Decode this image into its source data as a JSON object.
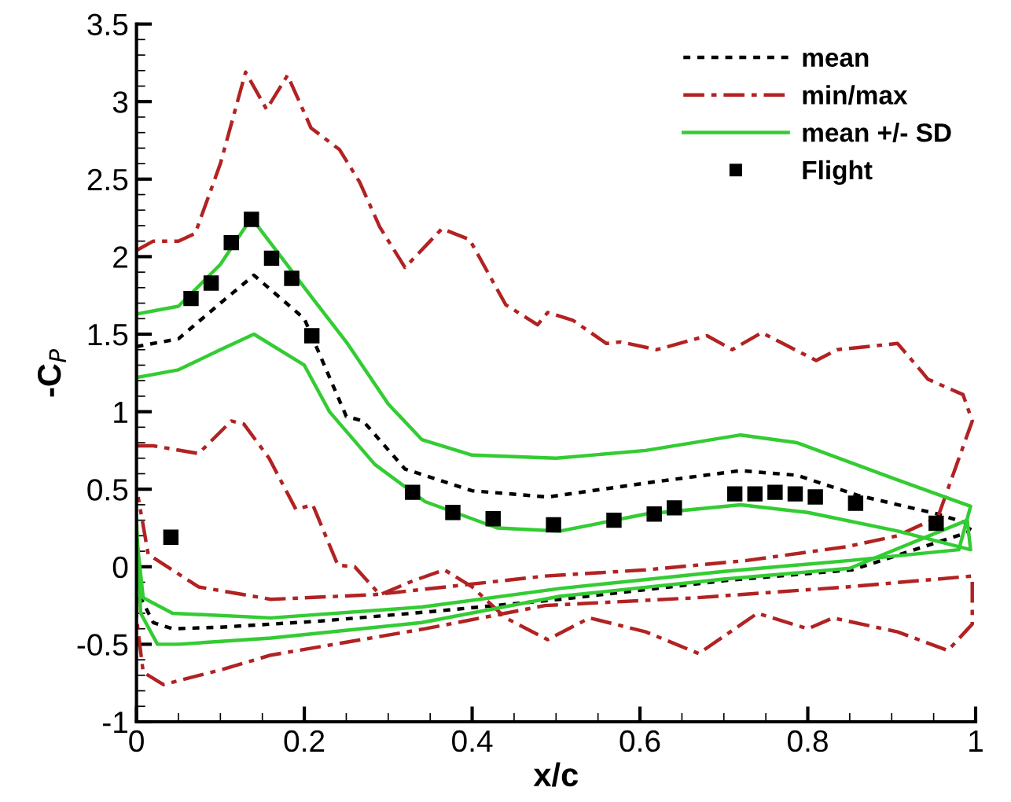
{
  "chart_data": {
    "type": "line",
    "xlabel": "x/c",
    "ylabel": "-C$_{P}$",
    "xlim": [
      0,
      1
    ],
    "ylim": [
      -1,
      3.5
    ],
    "xticks": [
      0,
      0.2,
      0.4,
      0.6,
      0.8,
      1
    ],
    "yticks": [
      -1,
      -0.5,
      0,
      0.5,
      1,
      1.5,
      2,
      2.5,
      3,
      3.5
    ],
    "grid": false,
    "legend": "top right",
    "series": [
      {
        "name": "mean",
        "line_style": "dotted",
        "color": "#000000",
        "x": [
          0,
          0.05,
          0.1,
          0.14,
          0.2,
          0.25,
          0.27,
          0.32,
          0.4,
          0.49,
          0.607,
          0.72,
          0.787,
          0.86,
          0.955,
          0.996,
          0.99,
          0.853,
          0.7,
          0.505,
          0.35,
          0.22,
          0.1,
          0.043,
          0.02,
          0.005,
          0
        ],
        "values": [
          1.42,
          1.47,
          1.7,
          1.88,
          1.6,
          0.97,
          0.94,
          0.63,
          0.49,
          0.45,
          0.54,
          0.62,
          0.59,
          0.46,
          0.34,
          0.27,
          0.22,
          -0.02,
          -0.09,
          -0.21,
          -0.29,
          -0.35,
          -0.39,
          -0.4,
          -0.36,
          -0.2,
          0.1
        ]
      },
      {
        "name": "min/max",
        "line_style": "dashdot",
        "color": "#b22222",
        "x": [
          0,
          0.02,
          0.05,
          0.07,
          0.1,
          0.13,
          0.155,
          0.18,
          0.208,
          0.242,
          0.266,
          0.29,
          0.32,
          0.364,
          0.397,
          0.44,
          0.478,
          0.49,
          0.52,
          0.56,
          0.577,
          0.62,
          0.68,
          0.71,
          0.745,
          0.81,
          0.835,
          0.907,
          0.937,
          0.943,
          0.985,
          0.996,
          0.955,
          0.907,
          0.847,
          0.727,
          0.607,
          0.487,
          0.284,
          0.16,
          0.074,
          0.014,
          0.002
        ],
        "values": [
          2.04,
          2.1,
          2.1,
          2.15,
          2.6,
          3.19,
          2.95,
          3.17,
          2.83,
          2.69,
          2.48,
          2.19,
          1.93,
          2.18,
          2.11,
          1.69,
          1.56,
          1.64,
          1.59,
          1.44,
          1.45,
          1.4,
          1.49,
          1.4,
          1.51,
          1.33,
          1.4,
          1.44,
          1.25,
          1.21,
          1.11,
          0.94,
          0.32,
          0.2,
          0.13,
          0.04,
          -0.02,
          -0.06,
          -0.18,
          -0.21,
          -0.13,
          0.08,
          0.45
        ]
      },
      {
        "line_style": "dashdot",
        "color": "#b22222",
        "x": [
          0,
          0.02,
          0.074,
          0.113,
          0.128,
          0.158,
          0.19,
          0.21,
          0.24,
          0.26,
          0.29,
          0.33,
          0.367,
          0.4,
          0.44,
          0.49,
          0.54,
          0.607,
          0.67,
          0.74,
          0.8,
          0.83,
          0.907,
          0.967,
          0.996,
          0.996,
          0.847,
          0.667,
          0.487,
          0.344,
          0.16,
          0.104,
          0.032,
          0.008,
          0,
          0
        ],
        "values": [
          0.78,
          0.78,
          0.73,
          0.94,
          0.92,
          0.7,
          0.37,
          0.4,
          0.01,
          0,
          -0.18,
          -0.09,
          -0.02,
          -0.13,
          -0.33,
          -0.47,
          -0.33,
          -0.42,
          -0.56,
          -0.3,
          -0.4,
          -0.33,
          -0.42,
          -0.54,
          -0.37,
          -0.06,
          -0.13,
          -0.2,
          -0.25,
          -0.4,
          -0.57,
          -0.66,
          -0.76,
          -0.68,
          -0.33,
          -0.2
        ]
      },
      {
        "name": "mean +/- SD",
        "line_style": "solid",
        "color": "#33cc33",
        "x": [
          0,
          0.05,
          0.1,
          0.137,
          0.21,
          0.25,
          0.3,
          0.34,
          0.4,
          0.5,
          0.607,
          0.72,
          0.787,
          0.907,
          0.994,
          0.98,
          0.85,
          0.7,
          0.505,
          0.34,
          0.16,
          0.043,
          0.008,
          0
        ],
        "values": [
          1.63,
          1.68,
          1.95,
          2.25,
          1.73,
          1.45,
          1.05,
          0.82,
          0.72,
          0.7,
          0.75,
          0.85,
          0.8,
          0.56,
          0.39,
          0.11,
          0.04,
          -0.03,
          -0.14,
          -0.26,
          -0.33,
          -0.3,
          -0.2,
          0.2
        ]
      },
      {
        "line_style": "solid",
        "color": "#33cc33",
        "x": [
          0,
          0.05,
          0.1,
          0.14,
          0.2,
          0.23,
          0.284,
          0.344,
          0.43,
          0.505,
          0.607,
          0.72,
          0.8,
          0.907,
          0.994,
          0.99,
          0.85,
          0.7,
          0.505,
          0.34,
          0.16,
          0.05,
          0.025,
          0.005,
          0
        ],
        "values": [
          1.22,
          1.27,
          1.4,
          1.5,
          1.3,
          1.0,
          0.66,
          0.42,
          0.25,
          0.23,
          0.34,
          0.4,
          0.35,
          0.23,
          0.11,
          0.3,
          -0.01,
          -0.08,
          -0.19,
          -0.36,
          -0.46,
          -0.5,
          -0.5,
          -0.3,
          0.3
        ]
      },
      {
        "name": "Flight",
        "type": "scatter",
        "marker": "square",
        "color": "#000000",
        "x": [
          0.041,
          0.065,
          0.089,
          0.113,
          0.137,
          0.161,
          0.185,
          0.209,
          0.329,
          0.377,
          0.425,
          0.497,
          0.569,
          0.617,
          0.641,
          0.713,
          0.737,
          0.761,
          0.785,
          0.809,
          0.857,
          0.953
        ],
        "values": [
          0.19,
          1.73,
          1.83,
          2.09,
          2.24,
          1.99,
          1.86,
          1.49,
          0.48,
          0.35,
          0.31,
          0.27,
          0.3,
          0.34,
          0.38,
          0.47,
          0.47,
          0.48,
          0.47,
          0.45,
          0.41,
          0.28
        ]
      }
    ]
  }
}
